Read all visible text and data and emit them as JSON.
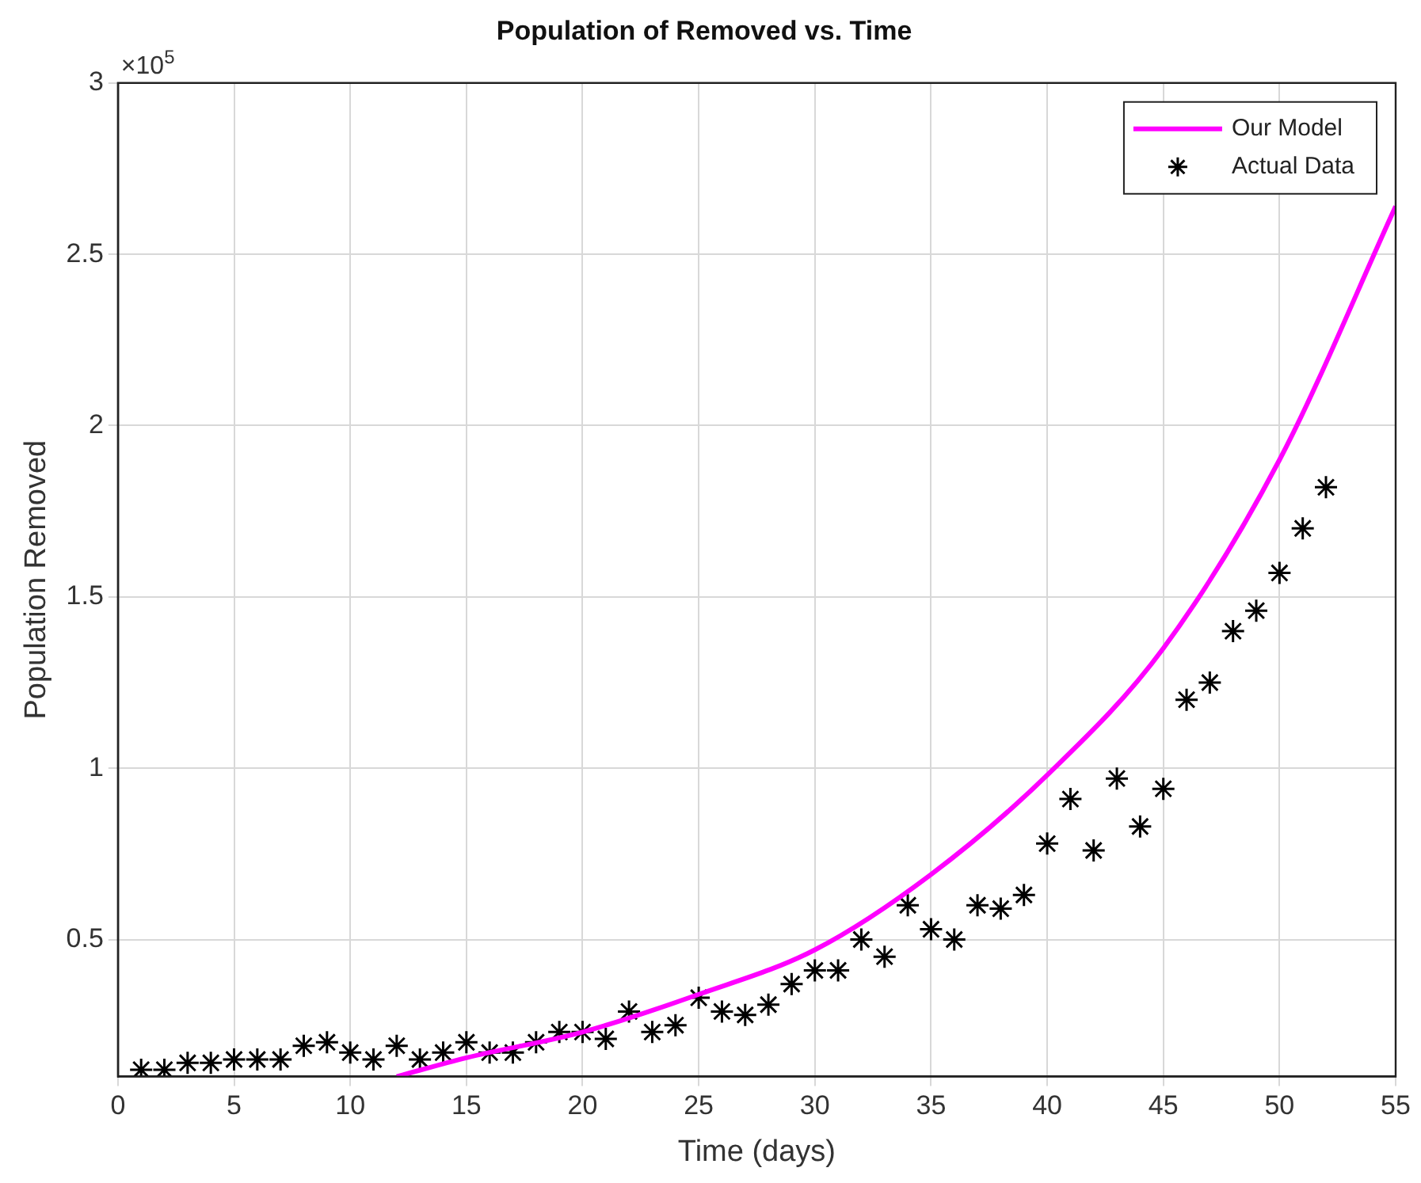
{
  "chart_data": {
    "type": "scatter",
    "title": "Population of Removed vs. Time",
    "xlabel": "Time (days)",
    "ylabel": "Population Removed",
    "annotations": [
      "×10$^{5}$"
    ],
    "series": [
      {
        "name": "Our Model",
        "type": "line",
        "color": "#ff00ff",
        "marker": "none",
        "x": [
          12,
          15,
          20,
          25,
          30,
          35,
          40,
          45,
          50,
          55
        ],
        "values": [
          0.1,
          0.155,
          0.23,
          0.34,
          0.47,
          0.69,
          0.98,
          1.35,
          1.9,
          2.64
        ]
      },
      {
        "name": "Actual Data",
        "type": "scatter",
        "color": "#000000",
        "marker": "cross",
        "x": [
          1,
          2,
          3,
          4,
          5,
          6,
          7,
          8,
          9,
          10,
          11,
          12,
          13,
          14,
          15,
          16,
          17,
          18,
          19,
          20,
          21,
          22,
          23,
          24,
          25,
          26,
          27,
          28,
          29,
          30,
          31,
          32,
          33,
          34,
          35,
          36,
          37,
          38,
          39,
          40,
          41,
          42,
          43,
          44,
          45,
          46,
          47,
          48,
          49,
          50,
          51,
          52
        ],
        "values": [
          0.12,
          0.12,
          0.14,
          0.14,
          0.15,
          0.15,
          0.15,
          0.19,
          0.2,
          0.17,
          0.15,
          0.19,
          0.15,
          0.17,
          0.2,
          0.17,
          0.17,
          0.2,
          0.23,
          0.23,
          0.21,
          0.29,
          0.23,
          0.25,
          0.33,
          0.29,
          0.28,
          0.31,
          0.37,
          0.41,
          0.41,
          0.5,
          0.45,
          0.6,
          0.53,
          0.5,
          0.6,
          0.59,
          0.63,
          0.78,
          0.91,
          0.76,
          0.97,
          0.83,
          0.94,
          1.2,
          1.25,
          1.4,
          1.46,
          1.57,
          1.7,
          1.82
        ]
      }
    ],
    "xlim": [
      0,
      55
    ],
    "xticks": [
      0,
      5,
      10,
      15,
      20,
      25,
      30,
      35,
      40,
      45,
      50,
      55
    ],
    "ylim": [
      0.1,
      3
    ],
    "yticks": [
      0.5,
      1,
      1.5,
      2,
      2.5,
      3
    ],
    "grid": true,
    "legend": "top right"
  }
}
